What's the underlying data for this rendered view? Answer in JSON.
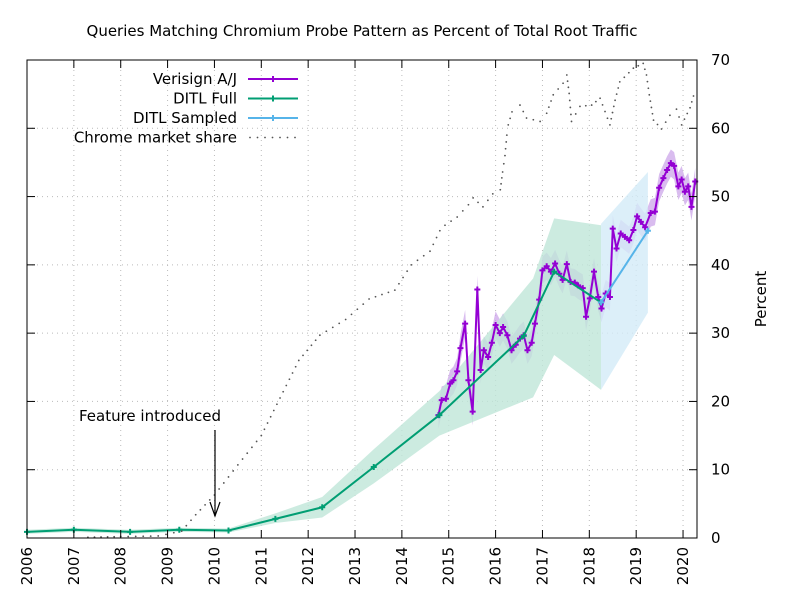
{
  "chart_data": {
    "type": "line",
    "title": "Queries Matching Chromium Probe Pattern as Percent of Total Root Traffic",
    "xlabel": "",
    "ylabel": "Percent",
    "xlim": [
      2006,
      2020.3
    ],
    "ylim": [
      0,
      70
    ],
    "x_ticks": [
      "2006",
      "2007",
      "2008",
      "2009",
      "2010",
      "2011",
      "2012",
      "2013",
      "2014",
      "2015",
      "2016",
      "2017",
      "2018",
      "2019",
      "2020"
    ],
    "y_ticks": [
      "0",
      "10",
      "20",
      "30",
      "40",
      "50",
      "60",
      "70"
    ],
    "y_axis_side": "right",
    "grid": true,
    "legend_position": "top-left",
    "annotation": {
      "text": "Feature introduced",
      "x": 2010.0,
      "arrow_to_y": 3
    },
    "series": [
      {
        "name": "Verisign A/J",
        "color": "#9400d3",
        "band_color": "#c9a0e8",
        "uncertainty": 2,
        "points": [
          [
            2014.78,
            18.0
          ],
          [
            2014.85,
            20.2
          ],
          [
            2014.94,
            20.4
          ],
          [
            2015.03,
            22.6
          ],
          [
            2015.1,
            23.1
          ],
          [
            2015.18,
            24.4
          ],
          [
            2015.25,
            27.8
          ],
          [
            2015.35,
            31.4
          ],
          [
            2015.42,
            23.1
          ],
          [
            2015.51,
            18.5
          ],
          [
            2015.61,
            36.4
          ],
          [
            2015.68,
            24.6
          ],
          [
            2015.75,
            27.5
          ],
          [
            2015.84,
            26.5
          ],
          [
            2015.92,
            28.6
          ],
          [
            2016.0,
            31.2
          ],
          [
            2016.09,
            30.0
          ],
          [
            2016.16,
            30.9
          ],
          [
            2016.25,
            29.7
          ],
          [
            2016.34,
            27.5
          ],
          [
            2016.43,
            28.3
          ],
          [
            2016.52,
            29.2
          ],
          [
            2016.6,
            29.7
          ],
          [
            2016.68,
            27.5
          ],
          [
            2016.77,
            28.6
          ],
          [
            2016.84,
            31.4
          ],
          [
            2016.93,
            34.9
          ],
          [
            2017.0,
            39.2
          ],
          [
            2017.09,
            39.8
          ],
          [
            2017.18,
            39.0
          ],
          [
            2017.27,
            40.2
          ],
          [
            2017.36,
            38.7
          ],
          [
            2017.43,
            37.8
          ],
          [
            2017.52,
            40.1
          ],
          [
            2017.6,
            37.5
          ],
          [
            2017.69,
            37.4
          ],
          [
            2017.76,
            37.0
          ],
          [
            2017.86,
            36.6
          ],
          [
            2017.93,
            32.4
          ],
          [
            2018.01,
            35.1
          ],
          [
            2018.1,
            39.0
          ],
          [
            2018.19,
            35.3
          ],
          [
            2018.26,
            33.6
          ],
          [
            2018.35,
            35.8
          ],
          [
            2018.44,
            35.3
          ],
          [
            2018.5,
            45.3
          ],
          [
            2018.58,
            42.4
          ],
          [
            2018.67,
            44.6
          ],
          [
            2018.76,
            44.1
          ],
          [
            2018.85,
            43.6
          ],
          [
            2018.94,
            45.1
          ],
          [
            2019.02,
            47.1
          ],
          [
            2019.1,
            46.3
          ],
          [
            2019.19,
            45.5
          ],
          [
            2019.31,
            47.6
          ],
          [
            2019.4,
            47.8
          ],
          [
            2019.49,
            51.3
          ],
          [
            2019.58,
            52.7
          ],
          [
            2019.66,
            53.9
          ],
          [
            2019.74,
            54.9
          ],
          [
            2019.81,
            54.5
          ],
          [
            2019.9,
            51.5
          ],
          [
            2019.97,
            52.5
          ],
          [
            2020.04,
            50.7
          ],
          [
            2020.11,
            51.5
          ],
          [
            2020.18,
            48.5
          ],
          [
            2020.26,
            52.2
          ]
        ]
      },
      {
        "name": "DITL Full",
        "color": "#009e73",
        "band_color": "#bfe6d8",
        "points": [
          [
            2006.0,
            0.9
          ],
          [
            2007.0,
            1.2
          ],
          [
            2008.2,
            0.9
          ],
          [
            2009.25,
            1.2
          ],
          [
            2010.3,
            1.1
          ],
          [
            2011.3,
            2.8
          ],
          [
            2012.3,
            4.5
          ],
          [
            2013.4,
            10.4
          ],
          [
            2014.8,
            18.0
          ],
          [
            2016.6,
            29.6
          ],
          [
            2017.25,
            39.0
          ],
          [
            2018.25,
            34.5
          ]
        ],
        "band": [
          [
            2006.0,
            0.6,
            1.2
          ],
          [
            2007.0,
            0.9,
            1.5
          ],
          [
            2008.2,
            0.6,
            1.2
          ],
          [
            2009.25,
            0.9,
            1.5
          ],
          [
            2010.3,
            0.8,
            1.4
          ],
          [
            2011.3,
            2.2,
            3.6
          ],
          [
            2012.3,
            3.0,
            6.0
          ],
          [
            2013.4,
            8.0,
            13.0
          ],
          [
            2014.8,
            15.0,
            21.5
          ],
          [
            2016.8,
            20.6,
            38.0
          ],
          [
            2017.25,
            26.8,
            46.8
          ],
          [
            2018.25,
            21.7,
            45.8
          ]
        ]
      },
      {
        "name": "DITL Sampled",
        "color": "#56b4e9",
        "band_color": "#d3ebf8",
        "points": [
          [
            2018.25,
            34.5
          ],
          [
            2019.25,
            45.0
          ]
        ],
        "band": [
          [
            2018.25,
            21.7,
            46.0
          ],
          [
            2019.25,
            33.0,
            53.6
          ]
        ]
      },
      {
        "name": "Chrome market share",
        "color": "#555555",
        "style": "dotted",
        "points": [
          [
            2007.3,
            0.1
          ],
          [
            2008.0,
            0.2
          ],
          [
            2008.8,
            0.3
          ],
          [
            2009.3,
            1.0
          ],
          [
            2009.6,
            3.4
          ],
          [
            2010.0,
            6.3
          ],
          [
            2010.5,
            10.7
          ],
          [
            2011.0,
            15.0
          ],
          [
            2011.8,
            26.0
          ],
          [
            2012.25,
            29.7
          ],
          [
            2012.8,
            32.0
          ],
          [
            2013.3,
            35.0
          ],
          [
            2013.85,
            36.3
          ],
          [
            2014.2,
            40.0
          ],
          [
            2014.6,
            42.0
          ],
          [
            2014.81,
            45.0
          ],
          [
            2014.92,
            45.8
          ],
          [
            2015.18,
            47.0
          ],
          [
            2015.42,
            48.8
          ],
          [
            2015.52,
            49.8
          ],
          [
            2015.73,
            48.5
          ],
          [
            2015.94,
            50.4
          ],
          [
            2016.1,
            51.0
          ],
          [
            2016.15,
            53.6
          ],
          [
            2016.2,
            56.0
          ],
          [
            2016.24,
            59.0
          ],
          [
            2016.27,
            60.5
          ],
          [
            2016.35,
            62.4
          ],
          [
            2016.52,
            63.4
          ],
          [
            2016.66,
            61.5
          ],
          [
            2016.95,
            61.0
          ],
          [
            2017.09,
            62.2
          ],
          [
            2017.23,
            64.9
          ],
          [
            2017.44,
            66.6
          ],
          [
            2017.52,
            67.8
          ],
          [
            2017.57,
            65.1
          ],
          [
            2017.62,
            61.0
          ],
          [
            2017.8,
            63.2
          ],
          [
            2018.05,
            63.4
          ],
          [
            2018.23,
            64.4
          ],
          [
            2018.44,
            60.5
          ],
          [
            2018.55,
            64.1
          ],
          [
            2018.65,
            66.8
          ],
          [
            2018.94,
            68.8
          ],
          [
            2019.15,
            69.5
          ],
          [
            2019.22,
            67.8
          ],
          [
            2019.28,
            64.9
          ],
          [
            2019.37,
            61.2
          ],
          [
            2019.54,
            59.9
          ],
          [
            2019.72,
            61.9
          ],
          [
            2019.86,
            62.8
          ],
          [
            2019.97,
            60.5
          ],
          [
            2020.15,
            63.0
          ],
          [
            2020.26,
            65.6
          ]
        ]
      }
    ]
  }
}
